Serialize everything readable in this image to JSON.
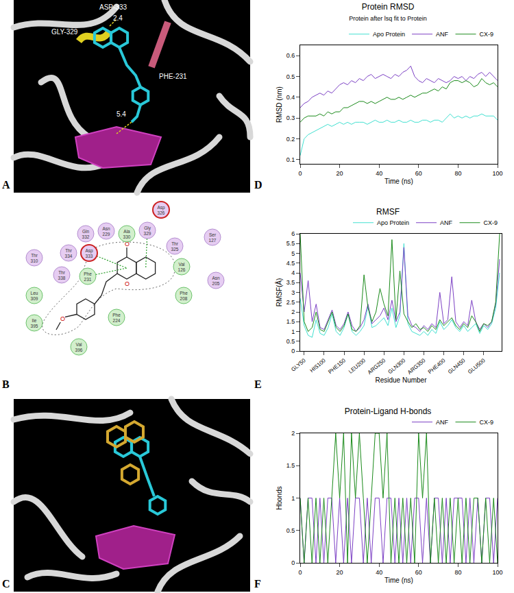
{
  "chart_data": [
    {
      "panel": "D",
      "type": "line",
      "title": "Protein RMSD",
      "subtitle": "Protein after lsq fit to Protein",
      "x_label": "Time (ns)",
      "y_label": "RMSD (nm)",
      "x": [
        0,
        2,
        4,
        6,
        8,
        10,
        12,
        14,
        16,
        18,
        20,
        22,
        24,
        26,
        28,
        30,
        32,
        34,
        36,
        38,
        40,
        42,
        44,
        46,
        48,
        50,
        52,
        54,
        56,
        58,
        60,
        62,
        64,
        66,
        68,
        70,
        72,
        74,
        76,
        78,
        80,
        82,
        84,
        86,
        88,
        90,
        92,
        94,
        96,
        98,
        100
      ],
      "series": [
        {
          "name": "Apo Protein",
          "color": "#40e0d0",
          "values": [
            0.12,
            0.2,
            0.22,
            0.23,
            0.24,
            0.25,
            0.26,
            0.27,
            0.26,
            0.27,
            0.28,
            0.27,
            0.28,
            0.27,
            0.28,
            0.28,
            0.28,
            0.27,
            0.28,
            0.29,
            0.28,
            0.28,
            0.29,
            0.28,
            0.28,
            0.29,
            0.28,
            0.28,
            0.29,
            0.28,
            0.28,
            0.29,
            0.29,
            0.28,
            0.29,
            0.29,
            0.28,
            0.3,
            0.32,
            0.3,
            0.31,
            0.3,
            0.31,
            0.3,
            0.31,
            0.31,
            0.32,
            0.31,
            0.31,
            0.31,
            0.29
          ]
        },
        {
          "name": "ANF",
          "color": "#7b3fc4",
          "values": [
            0.35,
            0.37,
            0.38,
            0.4,
            0.41,
            0.42,
            0.41,
            0.43,
            0.42,
            0.44,
            0.46,
            0.47,
            0.46,
            0.48,
            0.47,
            0.49,
            0.48,
            0.5,
            0.51,
            0.49,
            0.5,
            0.51,
            0.5,
            0.49,
            0.51,
            0.5,
            0.52,
            0.53,
            0.55,
            0.5,
            0.48,
            0.47,
            0.49,
            0.48,
            0.47,
            0.49,
            0.48,
            0.47,
            0.48,
            0.5,
            0.49,
            0.5,
            0.48,
            0.5,
            0.49,
            0.51,
            0.52,
            0.5,
            0.52,
            0.5,
            0.48
          ]
        },
        {
          "name": "CX-9",
          "color": "#1a8a1a",
          "values": [
            0.28,
            0.3,
            0.31,
            0.31,
            0.31,
            0.32,
            0.31,
            0.33,
            0.32,
            0.33,
            0.33,
            0.35,
            0.35,
            0.36,
            0.37,
            0.38,
            0.38,
            0.37,
            0.38,
            0.37,
            0.38,
            0.39,
            0.4,
            0.39,
            0.39,
            0.4,
            0.39,
            0.4,
            0.41,
            0.4,
            0.41,
            0.42,
            0.42,
            0.43,
            0.44,
            0.43,
            0.45,
            0.44,
            0.47,
            0.48,
            0.48,
            0.47,
            0.48,
            0.47,
            0.45,
            0.46,
            0.49,
            0.47,
            0.46,
            0.47,
            0.45
          ]
        }
      ],
      "xlim": [
        0,
        100
      ],
      "xticks": [
        0,
        20,
        40,
        60,
        80,
        100
      ],
      "ylim": [
        0.08,
        0.65
      ],
      "yticks": [
        0.1,
        0.2,
        0.3,
        0.4,
        0.5,
        0.6
      ],
      "legend": "top",
      "grid": false
    },
    {
      "panel": "E",
      "type": "line",
      "title": "RMSF",
      "x_label": "Residue Number",
      "y_label": "RMSF(Å)",
      "x": [
        40,
        50,
        60,
        70,
        80,
        90,
        100,
        110,
        120,
        130,
        140,
        150,
        160,
        170,
        180,
        190,
        200,
        210,
        220,
        230,
        240,
        250,
        260,
        270,
        280,
        290,
        300,
        310,
        320,
        330,
        340,
        350,
        360,
        370,
        380,
        390,
        400,
        410,
        420,
        430,
        440,
        450,
        460,
        470,
        480,
        490,
        500,
        510,
        520,
        530,
        540
      ],
      "series": [
        {
          "name": "Apo Protein",
          "color": "#40e0d0",
          "values": [
            2.7,
            1.3,
            0.8,
            0.7,
            1.6,
            0.9,
            0.8,
            1.2,
            1.9,
            1.0,
            0.8,
            1.2,
            1.9,
            1.0,
            0.8,
            1.0,
            1.3,
            2.3,
            1.2,
            1.3,
            1.5,
            1.7,
            1.3,
            2.2,
            1.2,
            1.8,
            5.5,
            1.4,
            1.0,
            0.9,
            0.8,
            1.0,
            0.8,
            1.1,
            0.9,
            1.5,
            1.1,
            1.3,
            1.6,
            1.2,
            1.0,
            1.3,
            1.0,
            1.2,
            1.4,
            0.9,
            1.3,
            1.1,
            1.4,
            2.2,
            4.0
          ]
        },
        {
          "name": "ANF",
          "color": "#7b3fc4",
          "values": [
            4.0,
            2.0,
            3.6,
            1.5,
            2.4,
            1.2,
            1.1,
            1.6,
            2.1,
            1.3,
            1.1,
            1.4,
            2.0,
            1.3,
            1.0,
            1.2,
            1.6,
            2.4,
            1.4,
            1.6,
            1.8,
            2.2,
            1.6,
            2.6,
            1.5,
            2.0,
            5.3,
            1.8,
            1.3,
            1.2,
            1.0,
            1.3,
            1.1,
            1.4,
            1.2,
            3.0,
            1.4,
            1.6,
            3.8,
            1.5,
            1.2,
            1.5,
            1.3,
            2.6,
            1.5,
            1.1,
            1.4,
            1.2,
            1.5,
            2.4,
            4.7
          ]
        },
        {
          "name": "CX-9",
          "color": "#1a8a1a",
          "values": [
            6.0,
            1.5,
            1.0,
            1.2,
            2.0,
            1.1,
            1.0,
            1.5,
            2.0,
            1.2,
            1.0,
            1.3,
            1.9,
            1.1,
            1.0,
            1.3,
            3.9,
            2.2,
            1.5,
            2.0,
            3.2,
            2.4,
            1.8,
            5.7,
            1.6,
            4.1,
            1.9,
            1.5,
            1.2,
            1.4,
            1.1,
            1.2,
            1.0,
            1.3,
            1.1,
            1.6,
            1.3,
            1.5,
            1.7,
            1.3,
            1.1,
            1.4,
            1.2,
            1.8,
            1.5,
            1.0,
            1.4,
            1.3,
            1.5,
            2.5,
            6.0
          ]
        }
      ],
      "xlim": [
        40,
        545
      ],
      "xticks": [
        {
          "value": 50,
          "label": "GLY50"
        },
        {
          "value": 100,
          "label": "HIS100"
        },
        {
          "value": 150,
          "label": "PHE150"
        },
        {
          "value": 200,
          "label": "LEU200"
        },
        {
          "value": 250,
          "label": "ARG250"
        },
        {
          "value": 300,
          "label": "GLN300"
        },
        {
          "value": 350,
          "label": "ARG350"
        },
        {
          "value": 400,
          "label": "PHE400"
        },
        {
          "value": 450,
          "label": "GLN450"
        },
        {
          "value": 500,
          "label": "GLU500"
        }
      ],
      "ylim": [
        0,
        6
      ],
      "yticks": [
        0,
        0.5,
        1,
        1.5,
        2,
        2.5,
        3,
        3.5,
        4,
        4.5,
        5,
        5.5,
        6
      ],
      "legend": "top",
      "grid": false
    },
    {
      "panel": "F",
      "type": "line",
      "title": "Protein-Ligand H-bonds",
      "x_label": "Time (ns)",
      "y_label": "Hbonds",
      "x": [
        0,
        2,
        4,
        6,
        8,
        10,
        12,
        14,
        16,
        18,
        20,
        22,
        24,
        26,
        28,
        30,
        32,
        34,
        36,
        38,
        40,
        42,
        44,
        46,
        48,
        50,
        52,
        54,
        56,
        58,
        60,
        62,
        64,
        66,
        68,
        70,
        72,
        74,
        76,
        78,
        80,
        82,
        84,
        86,
        88,
        90,
        92,
        94,
        96,
        98,
        100
      ],
      "series": [
        {
          "name": "ANF",
          "color": "#7b3fc4",
          "values": [
            1,
            0,
            1,
            1,
            0,
            1,
            0,
            1,
            1,
            0,
            1,
            0,
            1,
            0,
            1,
            1,
            0,
            1,
            0,
            1,
            1,
            0,
            1,
            1,
            0,
            1,
            0,
            1,
            0,
            1,
            1,
            0,
            1,
            0,
            1,
            1,
            0,
            1,
            0,
            1,
            1,
            1,
            0,
            1,
            0,
            1,
            0,
            1,
            1,
            0,
            1
          ]
        },
        {
          "name": "CX-9",
          "color": "#1a8a1a",
          "values": [
            1,
            0,
            1,
            0,
            1,
            0,
            1,
            0,
            1,
            2,
            1,
            2,
            0,
            2,
            1,
            2,
            1,
            0,
            1,
            2,
            2,
            1,
            2,
            0,
            1,
            0,
            1,
            0,
            1,
            0,
            2,
            1,
            2,
            0,
            1,
            0,
            1,
            0,
            1,
            0,
            1,
            0,
            1,
            0,
            1,
            1,
            0,
            1,
            0,
            1,
            0
          ]
        }
      ],
      "xlim": [
        0,
        100
      ],
      "xticks": [
        0,
        20,
        40,
        60,
        80,
        100
      ],
      "ylim": [
        0,
        2
      ],
      "yticks": [
        0,
        0.5,
        1,
        1.5,
        2
      ],
      "legend": "top",
      "grid": false
    }
  ],
  "images": [
    {
      "panel": "A",
      "labels": [
        "GLY-329",
        "ASP-333",
        "2.4",
        "PHE-231",
        "5.4"
      ]
    },
    {
      "panel": "B",
      "residues": [
        {
          "name": "Asp",
          "number": "326",
          "kind": "charged"
        },
        {
          "name": "Gln",
          "number": "332",
          "kind": "polar"
        },
        {
          "name": "Asn",
          "number": "229",
          "kind": "polar"
        },
        {
          "name": "Ala",
          "number": "330",
          "kind": "hydrophobic"
        },
        {
          "name": "Gly",
          "number": "329",
          "kind": "polar"
        },
        {
          "name": "Thr",
          "number": "325",
          "kind": "polar"
        },
        {
          "name": "Ser",
          "number": "127",
          "kind": "polar"
        },
        {
          "name": "Thr",
          "number": "310",
          "kind": "polar"
        },
        {
          "name": "Thr",
          "number": "334",
          "kind": "polar"
        },
        {
          "name": "Asp",
          "number": "333",
          "kind": "charged"
        },
        {
          "name": "Val",
          "number": "126",
          "kind": "hydrophobic"
        },
        {
          "name": "Thr",
          "number": "338",
          "kind": "polar"
        },
        {
          "name": "Phe",
          "number": "231",
          "kind": "hydrophobic"
        },
        {
          "name": "Leu",
          "number": "309",
          "kind": "hydrophobic"
        },
        {
          "name": "Asn",
          "number": "205",
          "kind": "polar"
        },
        {
          "name": "Phe",
          "number": "208",
          "kind": "hydrophobic"
        },
        {
          "name": "Ile",
          "number": "395",
          "kind": "hydrophobic"
        },
        {
          "name": "Phe",
          "number": "224",
          "kind": "hydrophobic"
        },
        {
          "name": "Val",
          "number": "396",
          "kind": "hydrophobic"
        }
      ],
      "atom_labels": [
        "O",
        "O",
        "O"
      ]
    },
    {
      "panel": "C"
    }
  ]
}
